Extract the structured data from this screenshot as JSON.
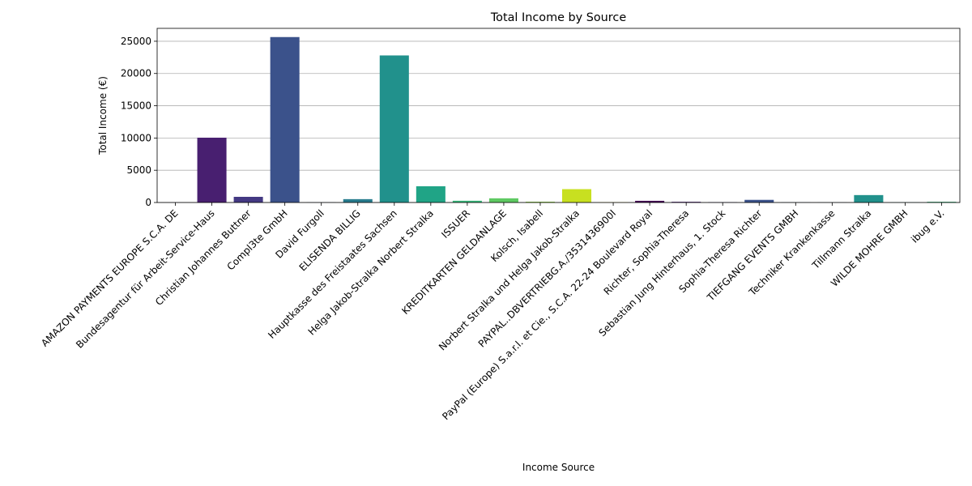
{
  "chart_data": {
    "type": "bar",
    "title": "Total Income by Source",
    "xlabel": "Income Source",
    "ylabel": "Total Income (€)",
    "ylim": [
      0,
      27000
    ],
    "yticks": [
      0,
      5000,
      10000,
      15000,
      20000,
      25000
    ],
    "grid": "y",
    "categories": [
      "AMAZON PAYMENTS EUROPE S.C.A. DE",
      "Bundesagentur für Arbeit-Service-Haus",
      "Christian Johannes Buttner",
      "Compl3te GmbH",
      "David Furgoll",
      "ELISENDA BILLIG",
      "Hauptkasse des Freistaates Sachsen",
      "Helga Jakob-Stralka Norbert Stralka",
      "ISSUER",
      "KREDITKARTEN GELDANLAGE",
      "Kolsch, Isabell",
      "Norbert Stralka und Helga Jakob-Stralka",
      "PAYPAL..DBVERTRIEBG.A./3531436900I",
      "PayPal (Europe) S.a.r.l. et Cie., S.C.A. 22-24 Boulevard Royal",
      "Richter, Sophia-Theresa",
      "Sebastian Jung Hinterhaus, 1. Stock",
      "Sophia-Theresa Richter",
      "TIEFGANG EVENTS GMBH",
      "Techniker Krankenkasse",
      "Tillmann Stralka",
      "WILDE MOHRE GMBH",
      "ibug e.V."
    ],
    "values": [
      10,
      10050,
      880,
      25650,
      30,
      520,
      22800,
      2520,
      270,
      650,
      120,
      2070,
      40,
      260,
      110,
      60,
      410,
      30,
      20,
      1150,
      30,
      110
    ],
    "colors": [
      "#440154",
      "#481f70",
      "#443983",
      "#3b528b",
      "#31688e",
      "#287c8e",
      "#21918c",
      "#20a486",
      "#35b779",
      "#5ec962",
      "#90d743",
      "#c8e020",
      "#fde725",
      "#440154",
      "#481f70",
      "#443983",
      "#3b528b",
      "#31688e",
      "#287c8e",
      "#21918c",
      "#20a486",
      "#35b779"
    ]
  }
}
